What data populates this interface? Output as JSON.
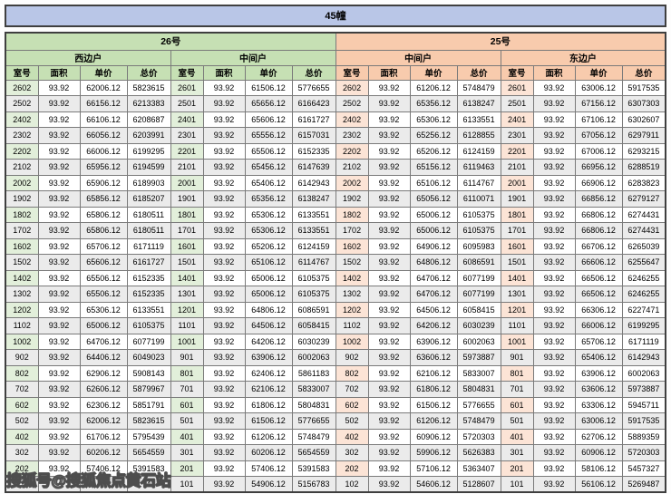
{
  "title": "45幢",
  "watermark": "搜狐号@搜狐焦点黄石站",
  "columns": [
    "室号",
    "面积",
    "单价",
    "总价"
  ],
  "row_count": 26,
  "colors": {
    "building_header": "#b9c6e7",
    "unit_26": "#c6e0b4",
    "unit_25": "#f8cbad",
    "room_cell_green": "#e2efda",
    "room_cell_orange": "#fce4d6",
    "alt_row": "#ebebeb"
  },
  "sections": [
    {
      "label": "26号",
      "groups": [
        {
          "label": "西边户",
          "rows": [
            [
              "2602",
              "93.92",
              "62006.12",
              "5823615"
            ],
            [
              "2502",
              "93.92",
              "66156.12",
              "6213383"
            ],
            [
              "2402",
              "93.92",
              "66106.12",
              "6208687"
            ],
            [
              "2302",
              "93.92",
              "66056.12",
              "6203991"
            ],
            [
              "2202",
              "93.92",
              "66006.12",
              "6199295"
            ],
            [
              "2102",
              "93.92",
              "65956.12",
              "6194599"
            ],
            [
              "2002",
              "93.92",
              "65906.12",
              "6189903"
            ],
            [
              "1902",
              "93.92",
              "65856.12",
              "6185207"
            ],
            [
              "1802",
              "93.92",
              "65806.12",
              "6180511"
            ],
            [
              "1702",
              "93.92",
              "65806.12",
              "6180511"
            ],
            [
              "1602",
              "93.92",
              "65706.12",
              "6171119"
            ],
            [
              "1502",
              "93.92",
              "65606.12",
              "6161727"
            ],
            [
              "1402",
              "93.92",
              "65506.12",
              "6152335"
            ],
            [
              "1302",
              "93.92",
              "65506.12",
              "6152335"
            ],
            [
              "1202",
              "93.92",
              "65306.12",
              "6133551"
            ],
            [
              "1102",
              "93.92",
              "65006.12",
              "6105375"
            ],
            [
              "1002",
              "93.92",
              "64706.12",
              "6077199"
            ],
            [
              "902",
              "93.92",
              "64406.12",
              "6049023"
            ],
            [
              "802",
              "93.92",
              "62906.12",
              "5908143"
            ],
            [
              "702",
              "93.92",
              "62606.12",
              "5879967"
            ],
            [
              "602",
              "93.92",
              "62306.12",
              "5851791"
            ],
            [
              "502",
              "93.92",
              "62006.12",
              "5823615"
            ],
            [
              "402",
              "93.92",
              "61706.12",
              "5795439"
            ],
            [
              "302",
              "93.92",
              "60206.12",
              "5654559"
            ],
            [
              "202",
              "93.92",
              "57406.12",
              "5391583"
            ],
            [
              "",
              "",
              "",
              "743"
            ]
          ]
        },
        {
          "label": "中间户",
          "rows": [
            [
              "2601",
              "93.92",
              "61506.12",
              "5776655"
            ],
            [
              "2501",
              "93.92",
              "65656.12",
              "6166423"
            ],
            [
              "2401",
              "93.92",
              "65606.12",
              "6161727"
            ],
            [
              "2301",
              "93.92",
              "65556.12",
              "6157031"
            ],
            [
              "2201",
              "93.92",
              "65506.12",
              "6152335"
            ],
            [
              "2101",
              "93.92",
              "65456.12",
              "6147639"
            ],
            [
              "2001",
              "93.92",
              "65406.12",
              "6142943"
            ],
            [
              "1901",
              "93.92",
              "65356.12",
              "6138247"
            ],
            [
              "1801",
              "93.92",
              "65306.12",
              "6133551"
            ],
            [
              "1701",
              "93.92",
              "65306.12",
              "6133551"
            ],
            [
              "1601",
              "93.92",
              "65206.12",
              "6124159"
            ],
            [
              "1501",
              "93.92",
              "65106.12",
              "6114767"
            ],
            [
              "1401",
              "93.92",
              "65006.12",
              "6105375"
            ],
            [
              "1301",
              "93.92",
              "65006.12",
              "6105375"
            ],
            [
              "1201",
              "93.92",
              "64806.12",
              "6086591"
            ],
            [
              "1101",
              "93.92",
              "64506.12",
              "6058415"
            ],
            [
              "1001",
              "93.92",
              "64206.12",
              "6030239"
            ],
            [
              "901",
              "93.92",
              "63906.12",
              "6002063"
            ],
            [
              "801",
              "93.92",
              "62406.12",
              "5861183"
            ],
            [
              "701",
              "93.92",
              "62106.12",
              "5833007"
            ],
            [
              "601",
              "93.92",
              "61806.12",
              "5804831"
            ],
            [
              "501",
              "93.92",
              "61506.12",
              "5776655"
            ],
            [
              "401",
              "93.92",
              "61206.12",
              "5748479"
            ],
            [
              "301",
              "93.92",
              "60206.12",
              "5654559"
            ],
            [
              "201",
              "93.92",
              "57406.12",
              "5391583"
            ],
            [
              "101",
              "93.92",
              "54906.12",
              "5156783"
            ]
          ]
        }
      ]
    },
    {
      "label": "25号",
      "groups": [
        {
          "label": "中间户",
          "rows": [
            [
              "2602",
              "93.92",
              "61206.12",
              "5748479"
            ],
            [
              "2502",
              "93.92",
              "65356.12",
              "6138247"
            ],
            [
              "2402",
              "93.92",
              "65306.12",
              "6133551"
            ],
            [
              "2302",
              "93.92",
              "65256.12",
              "6128855"
            ],
            [
              "2202",
              "93.92",
              "65206.12",
              "6124159"
            ],
            [
              "2102",
              "93.92",
              "65156.12",
              "6119463"
            ],
            [
              "2002",
              "93.92",
              "65106.12",
              "6114767"
            ],
            [
              "1902",
              "93.92",
              "65056.12",
              "6110071"
            ],
            [
              "1802",
              "93.92",
              "65006.12",
              "6105375"
            ],
            [
              "1702",
              "93.92",
              "65006.12",
              "6105375"
            ],
            [
              "1602",
              "93.92",
              "64906.12",
              "6095983"
            ],
            [
              "1502",
              "93.92",
              "64806.12",
              "6086591"
            ],
            [
              "1402",
              "93.92",
              "64706.12",
              "6077199"
            ],
            [
              "1302",
              "93.92",
              "64706.12",
              "6077199"
            ],
            [
              "1202",
              "93.92",
              "64506.12",
              "6058415"
            ],
            [
              "1102",
              "93.92",
              "64206.12",
              "6030239"
            ],
            [
              "1002",
              "93.92",
              "63906.12",
              "6002063"
            ],
            [
              "902",
              "93.92",
              "63606.12",
              "5973887"
            ],
            [
              "802",
              "93.92",
              "62106.12",
              "5833007"
            ],
            [
              "702",
              "93.92",
              "61806.12",
              "5804831"
            ],
            [
              "602",
              "93.92",
              "61506.12",
              "5776655"
            ],
            [
              "502",
              "93.92",
              "61206.12",
              "5748479"
            ],
            [
              "402",
              "93.92",
              "60906.12",
              "5720303"
            ],
            [
              "302",
              "93.92",
              "59906.12",
              "5626383"
            ],
            [
              "202",
              "93.92",
              "57106.12",
              "5363407"
            ],
            [
              "102",
              "93.92",
              "54606.12",
              "5128607"
            ]
          ]
        },
        {
          "label": "东边户",
          "rows": [
            [
              "2601",
              "93.92",
              "63006.12",
              "5917535"
            ],
            [
              "2501",
              "93.92",
              "67156.12",
              "6307303"
            ],
            [
              "2401",
              "93.92",
              "67106.12",
              "6302607"
            ],
            [
              "2301",
              "93.92",
              "67056.12",
              "6297911"
            ],
            [
              "2201",
              "93.92",
              "67006.12",
              "6293215"
            ],
            [
              "2101",
              "93.92",
              "66956.12",
              "6288519"
            ],
            [
              "2001",
              "93.92",
              "66906.12",
              "6283823"
            ],
            [
              "1901",
              "93.92",
              "66856.12",
              "6279127"
            ],
            [
              "1801",
              "93.92",
              "66806.12",
              "6274431"
            ],
            [
              "1701",
              "93.92",
              "66806.12",
              "6274431"
            ],
            [
              "1601",
              "93.92",
              "66706.12",
              "6265039"
            ],
            [
              "1501",
              "93.92",
              "66606.12",
              "6255647"
            ],
            [
              "1401",
              "93.92",
              "66506.12",
              "6246255"
            ],
            [
              "1301",
              "93.92",
              "66506.12",
              "6246255"
            ],
            [
              "1201",
              "93.92",
              "66306.12",
              "6227471"
            ],
            [
              "1101",
              "93.92",
              "66006.12",
              "6199295"
            ],
            [
              "1001",
              "93.92",
              "65706.12",
              "6171119"
            ],
            [
              "901",
              "93.92",
              "65406.12",
              "6142943"
            ],
            [
              "801",
              "93.92",
              "63906.12",
              "6002063"
            ],
            [
              "701",
              "93.92",
              "63606.12",
              "5973887"
            ],
            [
              "601",
              "93.92",
              "63306.12",
              "5945711"
            ],
            [
              "501",
              "93.92",
              "63006.12",
              "5917535"
            ],
            [
              "401",
              "93.92",
              "62706.12",
              "5889359"
            ],
            [
              "301",
              "93.92",
              "60906.12",
              "5720303"
            ],
            [
              "201",
              "93.92",
              "58106.12",
              "5457327"
            ],
            [
              "101",
              "93.92",
              "56106.12",
              "5269487"
            ]
          ]
        }
      ]
    }
  ]
}
